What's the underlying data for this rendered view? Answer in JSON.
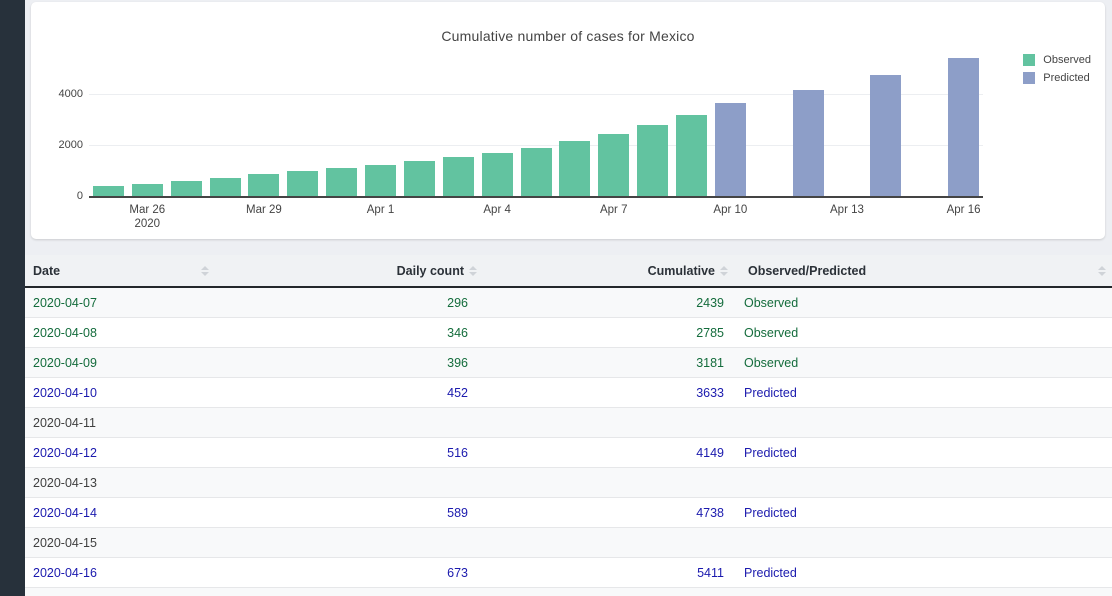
{
  "page": {
    "background": "#edeff3",
    "sidebar_color": "#27313b"
  },
  "chart": {
    "title": "Cumulative number of cases for Mexico",
    "legend": [
      {
        "label": "Observed",
        "color": "#62c3a0"
      },
      {
        "label": "Predicted",
        "color": "#8d9ec8"
      }
    ]
  },
  "chart_data": {
    "type": "bar",
    "title": "Cumulative number of cases for Mexico",
    "x": [
      "2020-03-25",
      "2020-03-26",
      "2020-03-27",
      "2020-03-28",
      "2020-03-29",
      "2020-03-30",
      "2020-03-31",
      "2020-04-01",
      "2020-04-02",
      "2020-04-03",
      "2020-04-04",
      "2020-04-05",
      "2020-04-06",
      "2020-04-07",
      "2020-04-08",
      "2020-04-09",
      "2020-04-10",
      "2020-04-11",
      "2020-04-12",
      "2020-04-13",
      "2020-04-14",
      "2020-04-15",
      "2020-04-16"
    ],
    "series": [
      {
        "name": "Observed",
        "color": "#62c3a0",
        "values": [
          405,
          475,
          585,
          717,
          848,
          993,
          1094,
          1215,
          1378,
          1510,
          1688,
          1890,
          2143,
          2439,
          2785,
          3181,
          null,
          null,
          null,
          null,
          null,
          null,
          null
        ]
      },
      {
        "name": "Predicted",
        "color": "#8d9ec8",
        "values": [
          null,
          null,
          null,
          null,
          null,
          null,
          null,
          null,
          null,
          null,
          null,
          null,
          null,
          null,
          null,
          null,
          3633,
          null,
          4149,
          null,
          4738,
          null,
          5411
        ]
      }
    ],
    "xticks": [
      {
        "index": 1,
        "label": "Mar 26",
        "sub": "2020"
      },
      {
        "index": 4,
        "label": "Mar 29"
      },
      {
        "index": 7,
        "label": "Apr 1"
      },
      {
        "index": 10,
        "label": "Apr 4"
      },
      {
        "index": 13,
        "label": "Apr 7"
      },
      {
        "index": 16,
        "label": "Apr 10"
      },
      {
        "index": 19,
        "label": "Apr 13"
      },
      {
        "index": 22,
        "label": "Apr 16"
      }
    ],
    "yticks": [
      0,
      2000,
      4000
    ],
    "ylim": [
      0,
      5600
    ],
    "grid": true,
    "legend_position": "top-right"
  },
  "table": {
    "columns": [
      {
        "label": "Date",
        "align": "left"
      },
      {
        "label": "Daily count",
        "align": "right"
      },
      {
        "label": "Cumulative",
        "align": "right"
      },
      {
        "label": "Observed/Predicted",
        "align": "left"
      }
    ],
    "colors": {
      "Observed": "#146c3c",
      "Predicted": "#1b1aae",
      "default": "#404040"
    },
    "rows": [
      {
        "date": "2020-04-07",
        "daily": "296",
        "cumulative": "2439",
        "type": "Observed"
      },
      {
        "date": "2020-04-08",
        "daily": "346",
        "cumulative": "2785",
        "type": "Observed"
      },
      {
        "date": "2020-04-09",
        "daily": "396",
        "cumulative": "3181",
        "type": "Observed"
      },
      {
        "date": "2020-04-10",
        "daily": "452",
        "cumulative": "3633",
        "type": "Predicted"
      },
      {
        "date": "2020-04-11",
        "daily": "",
        "cumulative": "",
        "type": ""
      },
      {
        "date": "2020-04-12",
        "daily": "516",
        "cumulative": "4149",
        "type": "Predicted"
      },
      {
        "date": "2020-04-13",
        "daily": "",
        "cumulative": "",
        "type": ""
      },
      {
        "date": "2020-04-14",
        "daily": "589",
        "cumulative": "4738",
        "type": "Predicted"
      },
      {
        "date": "2020-04-15",
        "daily": "",
        "cumulative": "",
        "type": ""
      },
      {
        "date": "2020-04-16",
        "daily": "673",
        "cumulative": "5411",
        "type": "Predicted"
      }
    ]
  }
}
